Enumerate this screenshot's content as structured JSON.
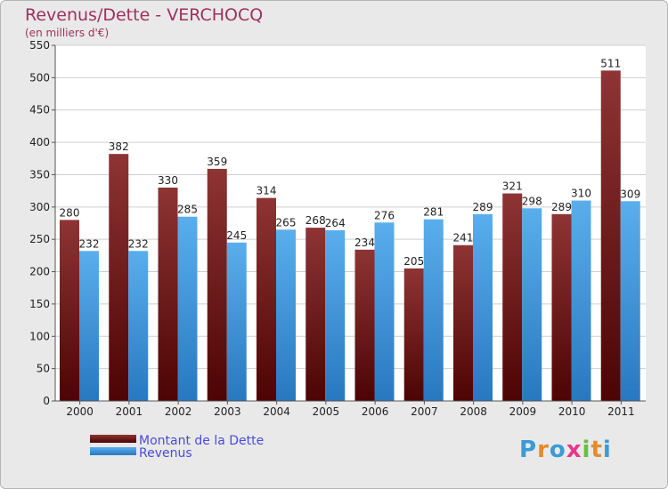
{
  "title": "Revenus/Dette - VERCHOCQ",
  "subtitle": "(en milliers d'€)",
  "logo": {
    "letters": [
      "P",
      "r",
      "o",
      "x",
      "i",
      "t",
      "i"
    ],
    "colors": [
      "#3a9bd5",
      "#e58a2d",
      "#3a9bd5",
      "#e8388a",
      "#6bbf3a",
      "#e58a2d",
      "#3a9bd5"
    ]
  },
  "chart_data": {
    "type": "bar",
    "title": "Revenus/Dette - VERCHOCQ",
    "ylabel": "(en milliers d'€)",
    "xlabel": "",
    "categories": [
      "2000",
      "2001",
      "2002",
      "2003",
      "2004",
      "2005",
      "2006",
      "2007",
      "2008",
      "2009",
      "2010",
      "2011"
    ],
    "series": [
      {
        "name": "Montant de la Dette",
        "color": "#7a1e1e",
        "values": [
          280,
          382,
          330,
          359,
          314,
          268,
          234,
          205,
          241,
          321,
          289,
          511
        ]
      },
      {
        "name": "Revenus",
        "color": "#3d97dd",
        "values": [
          232,
          232,
          285,
          245,
          265,
          264,
          276,
          281,
          289,
          298,
          310,
          309
        ]
      }
    ],
    "ylim": [
      0,
      550
    ],
    "yticks": [
      0,
      50,
      100,
      150,
      200,
      250,
      300,
      350,
      400,
      450,
      500,
      550
    ],
    "grid": true,
    "legend": "bottom-left"
  }
}
